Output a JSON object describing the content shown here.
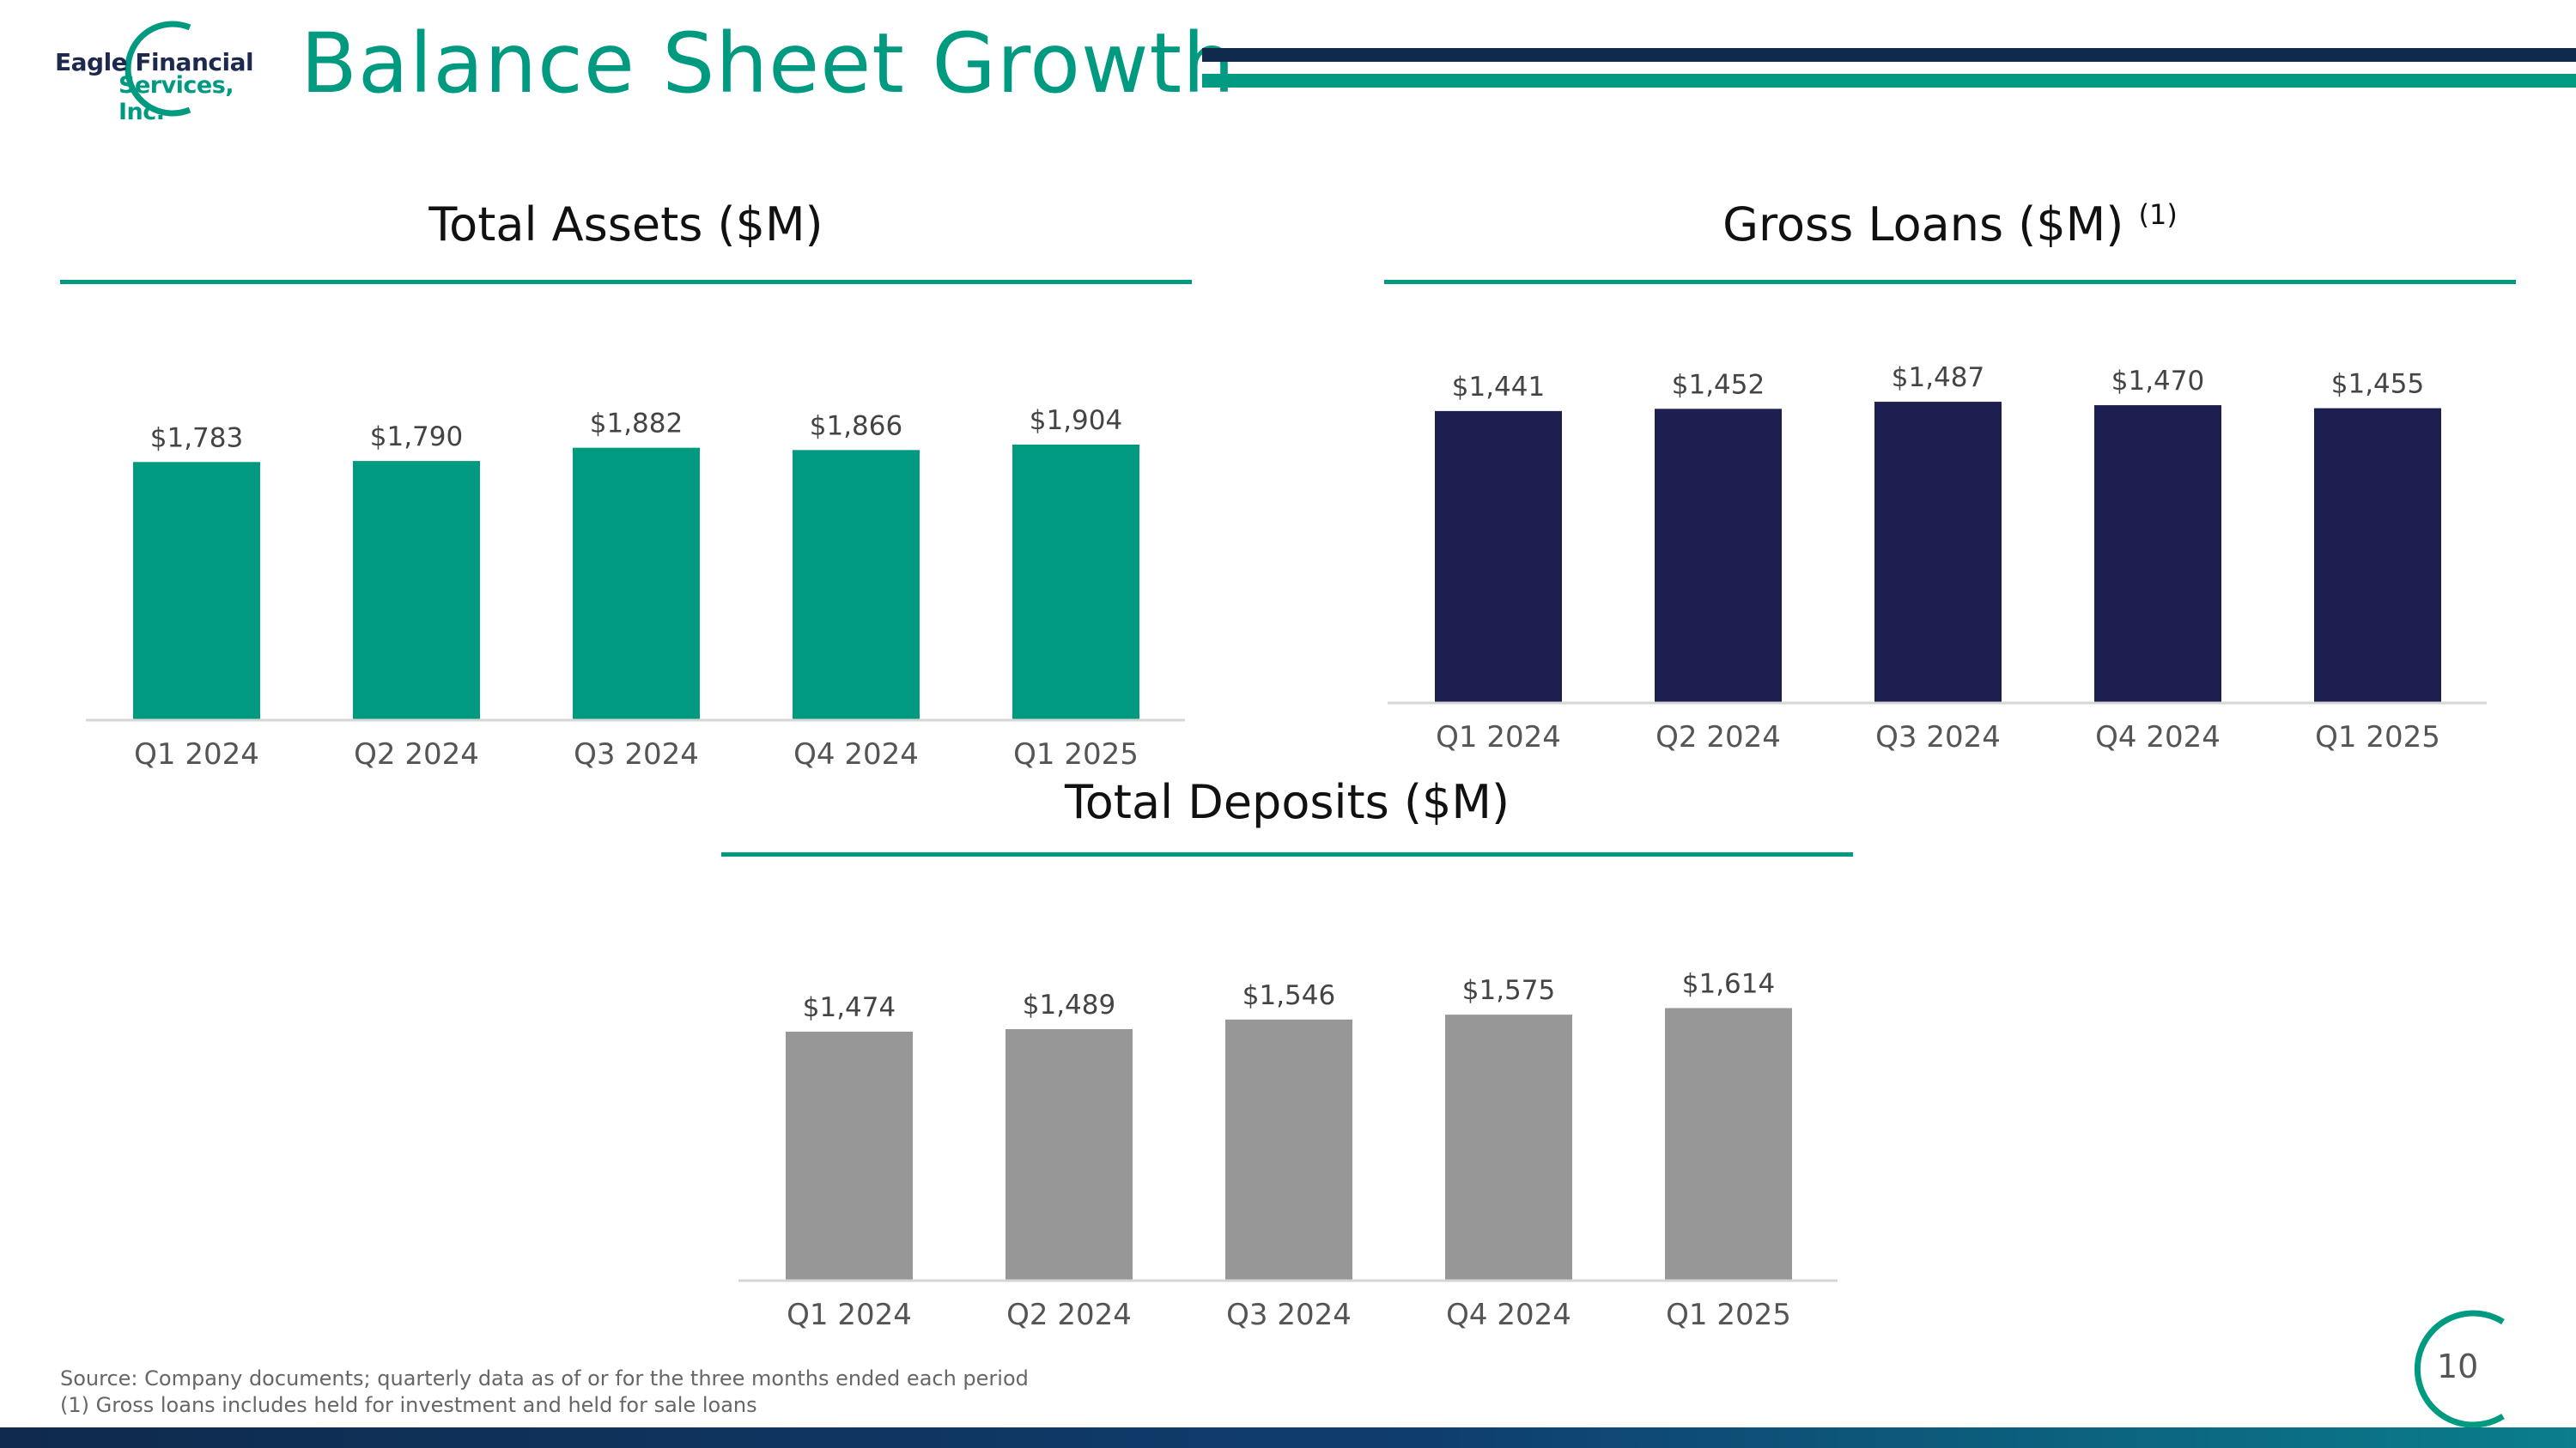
{
  "header": {
    "logo_line1": "Eagle Financial",
    "logo_line2": "Services, Inc.",
    "title": "Balance Sheet Growth"
  },
  "colors": {
    "teal": "#009a80",
    "navy": "#1c1f50",
    "gray": "#979798"
  },
  "chart_data": [
    {
      "type": "bar",
      "title": "Total Assets ($M)",
      "categories": [
        "Q1 2024",
        "Q2 2024",
        "Q3 2024",
        "Q4 2024",
        "Q1 2025"
      ],
      "values": [
        1783,
        1790,
        1882,
        1866,
        1904
      ],
      "labels": [
        "$1,783",
        "$1,790",
        "$1,882",
        "$1,866",
        "$1,904"
      ],
      "color": "#009a80",
      "ylim": [
        0,
        2100
      ],
      "grid": false
    },
    {
      "type": "bar",
      "title": "Gross Loans ($M)",
      "title_note": "(1)",
      "categories": [
        "Q1 2024",
        "Q2 2024",
        "Q3 2024",
        "Q4 2024",
        "Q1 2025"
      ],
      "values": [
        1441,
        1452,
        1487,
        1470,
        1455
      ],
      "labels": [
        "$1,441",
        "$1,452",
        "$1,487",
        "$1,470",
        "$1,455"
      ],
      "color": "#1c1f50",
      "ylim": [
        0,
        1500
      ],
      "grid": false
    },
    {
      "type": "bar",
      "title": "Total Deposits ($M)",
      "categories": [
        "Q1 2024",
        "Q2 2024",
        "Q3 2024",
        "Q4 2024",
        "Q1 2025"
      ],
      "values": [
        1474,
        1489,
        1546,
        1575,
        1614
      ],
      "labels": [
        "$1,474",
        "$1,489",
        "$1,546",
        "$1,575",
        "$1,614"
      ],
      "color": "#979798",
      "ylim": [
        0,
        1800
      ],
      "grid": false
    }
  ],
  "footer": {
    "source": "Source: Company documents; quarterly data as of or for the three months ended each period",
    "note": "(1)    Gross loans includes held for investment and held for sale loans",
    "page_number": "10"
  }
}
